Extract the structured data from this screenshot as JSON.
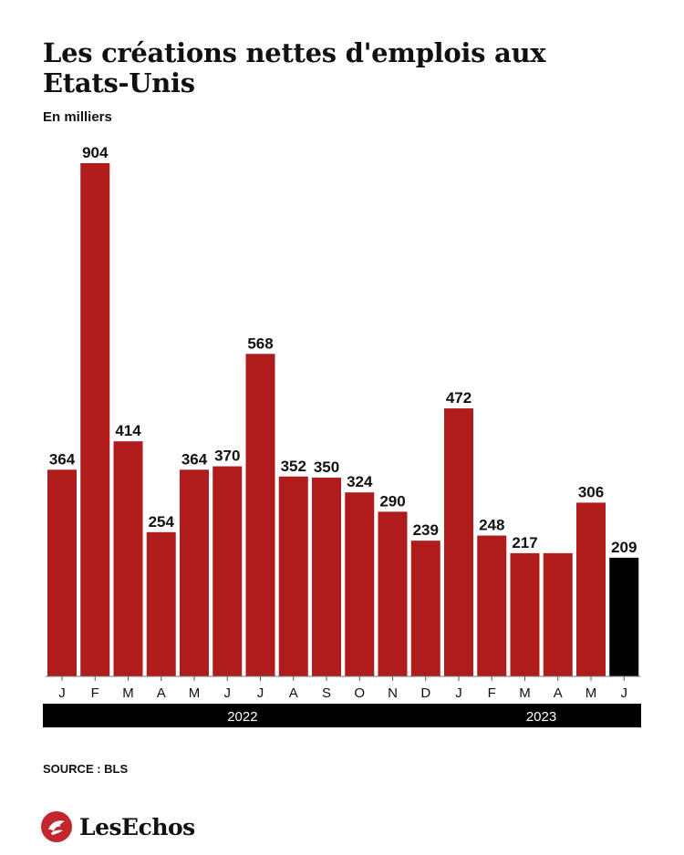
{
  "title": "Les créations nettes d'emplois aux Etats-Unis",
  "subtitle": "En milliers",
  "source": "SOURCE : BLS",
  "brand": "LesEchos",
  "colors": {
    "bar": "#b01c1c",
    "bar_highlight": "#000000",
    "year_band": "#000000",
    "text": "#111111"
  },
  "chart_data": {
    "type": "bar",
    "categories": [
      "J",
      "F",
      "M",
      "A",
      "M",
      "J",
      "J",
      "A",
      "S",
      "O",
      "N",
      "D",
      "J",
      "F",
      "M",
      "A",
      "M",
      "J"
    ],
    "values": [
      364,
      904,
      414,
      254,
      364,
      370,
      568,
      352,
      350,
      324,
      290,
      239,
      472,
      248,
      217,
      217,
      306,
      209
    ],
    "data_labels": [
      "364",
      "904",
      "414",
      "254",
      "364",
      "370",
      "568",
      "352",
      "350",
      "324",
      "290",
      "239",
      "472",
      "248",
      "217",
      "",
      "306",
      "209"
    ],
    "highlight_index": 17,
    "year_groups": [
      {
        "label": "2022",
        "start": 0,
        "end": 11
      },
      {
        "label": "2023",
        "start": 12,
        "end": 17
      }
    ],
    "ylim": [
      0,
      904
    ],
    "grid": false
  }
}
